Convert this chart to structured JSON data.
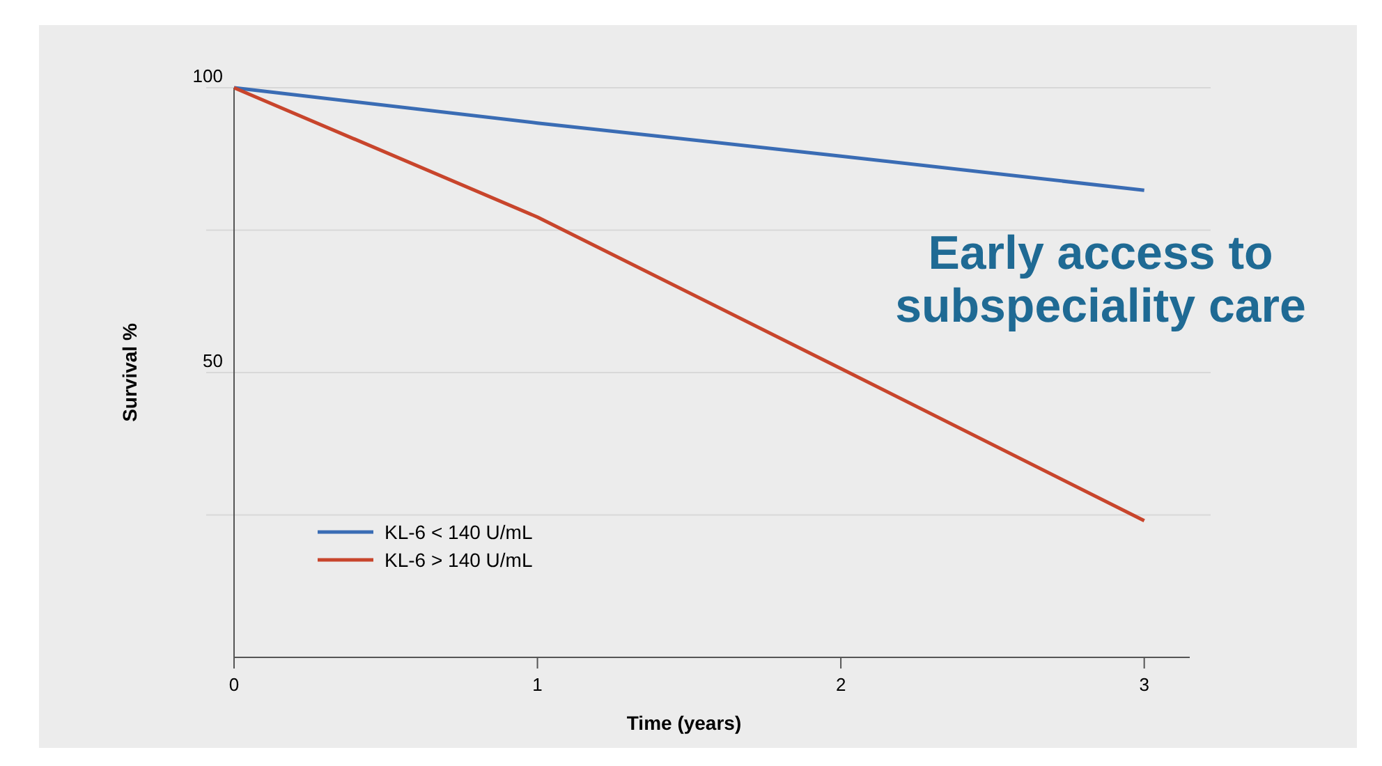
{
  "chart_data": {
    "type": "line",
    "xlabel": "Time (years)",
    "ylabel": "Survival %",
    "x": [
      0,
      1,
      2,
      3
    ],
    "series": [
      {
        "name": "KL-6 < 140 U/mL",
        "color": "#3a6cb4",
        "values": [
          100,
          93.8,
          88,
          82
        ]
      },
      {
        "name": "KL-6 > 140 U/mL",
        "color": "#c8452c",
        "values": [
          100,
          77.3,
          50.7,
          24
        ]
      }
    ],
    "xlim": [
      0,
      3.15
    ],
    "xticks": [
      0,
      1,
      2,
      3
    ],
    "ylim": [
      0,
      100
    ],
    "yticks": [
      {
        "value": 25,
        "label": null
      },
      50,
      {
        "value": 75,
        "label": null
      },
      100
    ],
    "grid": "y",
    "legend": "bottom left",
    "marker": "none",
    "line_style": "solid",
    "annotations": [
      "Early access to subspeciality care"
    ]
  }
}
